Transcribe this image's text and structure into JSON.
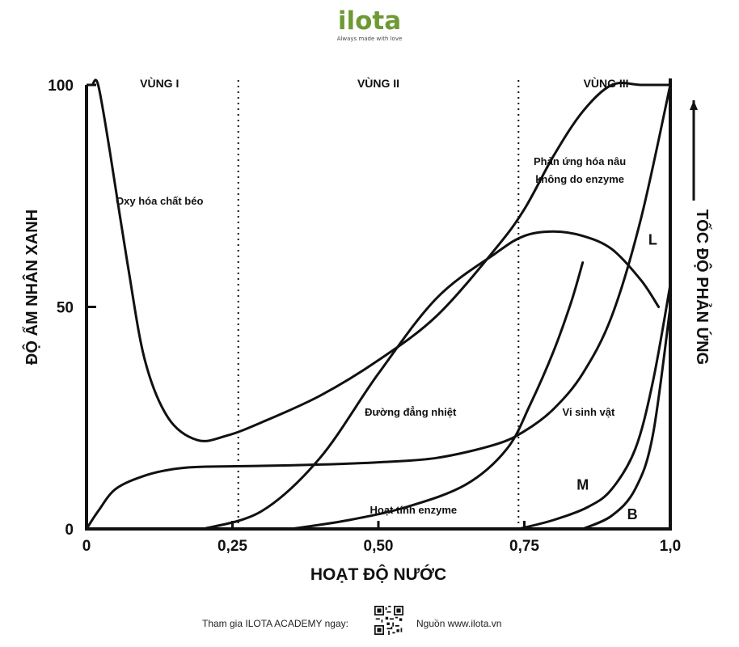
{
  "brand": {
    "name": "ilota",
    "tagline": "Always made with love"
  },
  "footer": {
    "join_text": "Tham gia ILOTA ACADEMY ngay:",
    "source_text": "Nguồn www.ilota.vn"
  },
  "chart_data": {
    "type": "line",
    "ylabel": "ĐỘ ẨM NHÂN XANH",
    "xlabel": "HOẠT ĐỘ NƯỚC",
    "right_label": "TỐC ĐỘ PHẢN ỨNG",
    "xlim": [
      0,
      1.0
    ],
    "ylim": [
      0,
      100
    ],
    "x_ticks": [
      {
        "value": 0,
        "label": "0"
      },
      {
        "value": 0.25,
        "label": "0,25"
      },
      {
        "value": 0.5,
        "label": "0,50"
      },
      {
        "value": 0.75,
        "label": "0,75"
      },
      {
        "value": 1.0,
        "label": "1,0"
      }
    ],
    "y_ticks": [
      {
        "value": 0,
        "label": "0"
      },
      {
        "value": 50,
        "label": "50"
      },
      {
        "value": 100,
        "label": "100"
      }
    ],
    "zones": [
      {
        "label": "VÙNG I",
        "x": 0.125
      },
      {
        "label": "VÙNG II",
        "x": 0.5
      },
      {
        "label": "VÙNG III",
        "x": 0.89
      }
    ],
    "zone_boundaries": [
      0.26,
      0.74
    ],
    "series": [
      {
        "label": "Oxy hóa chất béo",
        "x": [
          0.01,
          0.02,
          0.04,
          0.07,
          0.1,
          0.14,
          0.19,
          0.24,
          0.3,
          0.4,
          0.5,
          0.6,
          0.7,
          0.75,
          0.8,
          0.85,
          0.9,
          0.95,
          1.0
        ],
        "y": [
          100,
          100,
          85,
          60,
          38,
          25,
          20,
          21,
          24,
          30,
          38,
          48,
          63,
          72,
          84,
          94,
          100,
          100,
          100
        ]
      },
      {
        "label": "Đường đẳng nhiệt",
        "x": [
          0.0,
          0.02,
          0.05,
          0.1,
          0.15,
          0.2,
          0.3,
          0.4,
          0.5,
          0.6,
          0.7,
          0.75,
          0.8,
          0.85,
          0.9,
          0.95,
          1.0
        ],
        "y": [
          0,
          4,
          9,
          12,
          13.5,
          14,
          14.2,
          14.5,
          15,
          16,
          19,
          22,
          27,
          35,
          48,
          70,
          100
        ]
      },
      {
        "label": "Phản ứng hóa nâu không do enzyme",
        "x": [
          0.2,
          0.3,
          0.4,
          0.5,
          0.6,
          0.7,
          0.75,
          0.8,
          0.85,
          0.9,
          0.95,
          0.98
        ],
        "y": [
          0,
          4,
          16,
          35,
          52,
          62,
          66,
          67,
          66,
          63,
          56,
          50
        ]
      },
      {
        "label": "Hoạt tính enzyme",
        "x": [
          0.35,
          0.45,
          0.55,
          0.65,
          0.72,
          0.76,
          0.8,
          0.83,
          0.85
        ],
        "y": [
          0,
          2,
          5,
          10,
          18,
          28,
          40,
          51,
          60
        ]
      },
      {
        "label": "Vi sinh vật",
        "x": [
          0.74,
          0.8,
          0.86,
          0.9,
          0.94,
          0.97,
          1.0
        ],
        "y": [
          0,
          2,
          5,
          9,
          18,
          33,
          55
        ]
      },
      {
        "label": "B",
        "x": [
          0.85,
          0.9,
          0.94,
          0.97,
          1.0
        ],
        "y": [
          0,
          3,
          9,
          21,
          50
        ]
      }
    ],
    "curve_labels": [
      "L",
      "M",
      "B"
    ],
    "annotations": [
      {
        "text": "Phản ứng hóa nâu",
        "x": 0.845,
        "y": 82
      },
      {
        "text": "không do enzyme",
        "x": 0.845,
        "y": 78
      },
      {
        "text": "Oxy hóa chất béo",
        "x": 0.125,
        "y": 73
      },
      {
        "text": "Đường đẳng nhiệt",
        "x": 0.555,
        "y": 25.5
      },
      {
        "text": "Vi sinh vật",
        "x": 0.86,
        "y": 25.5
      },
      {
        "text": "Hoạt tính enzyme",
        "x": 0.56,
        "y": 3.5
      },
      {
        "text": "L",
        "x": 0.97,
        "y": 64
      },
      {
        "text": "M",
        "x": 0.85,
        "y": 8.8
      },
      {
        "text": "B",
        "x": 0.935,
        "y": 2.2
      }
    ],
    "grid": false,
    "legend": "none"
  },
  "colors": {
    "brand": "#6d9a33",
    "ink": "#111111"
  }
}
